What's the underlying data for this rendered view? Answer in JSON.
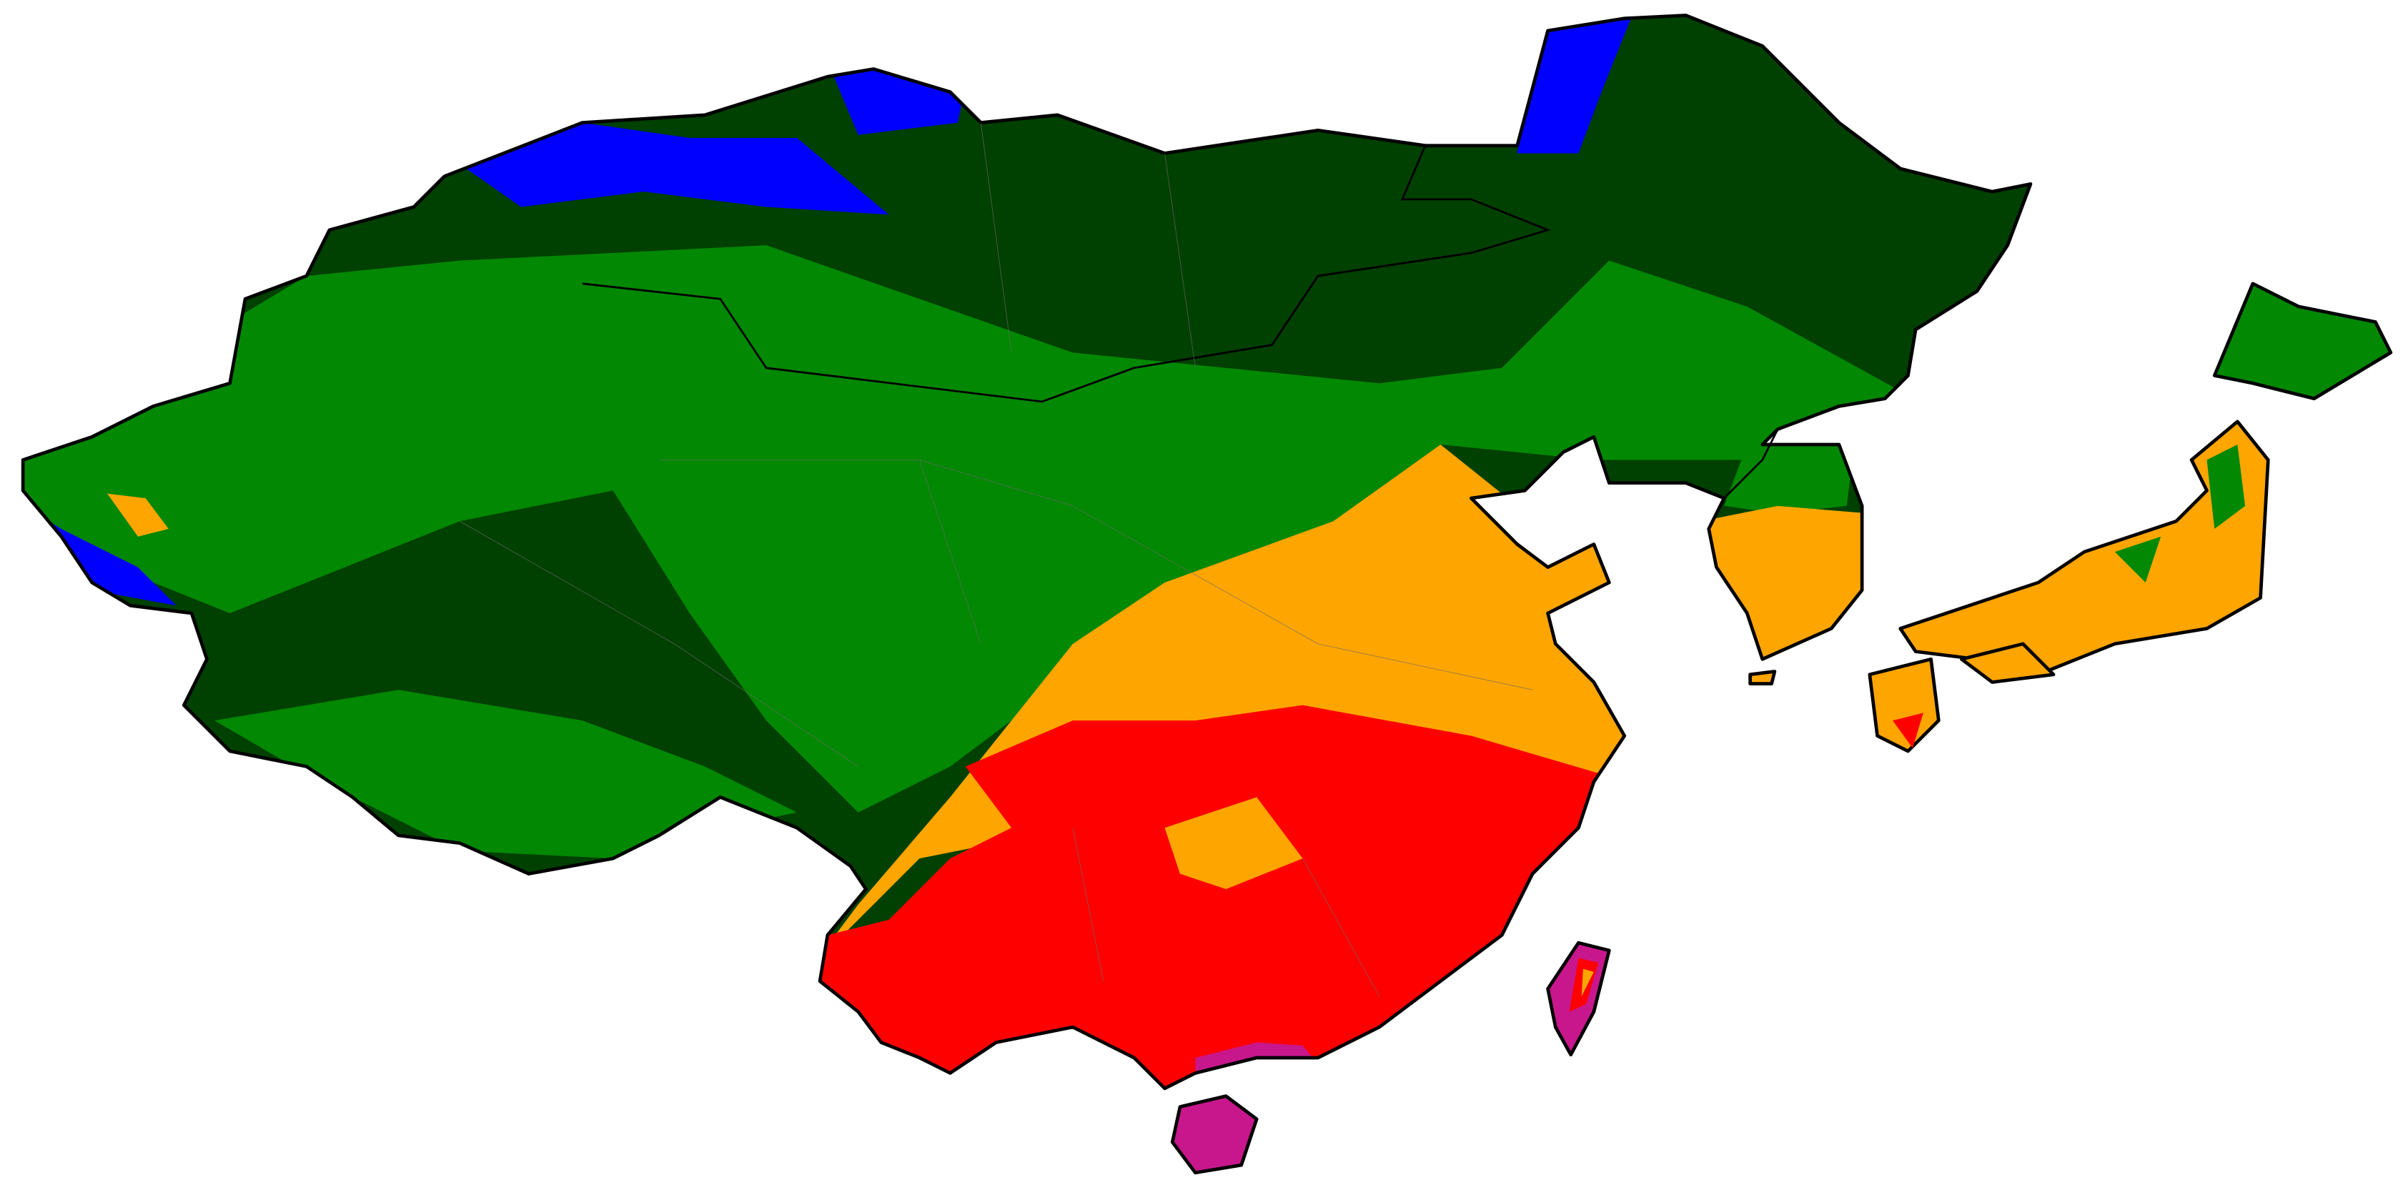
{
  "map": {
    "colors": {
      "background": "#ffffff",
      "dark_green": "#004000",
      "green": "#028802",
      "blue": "#0000ff",
      "orange": "#ffa500",
      "red": "#ff0000",
      "magenta": "#c8178c",
      "coastline": "#000000",
      "province_lines": "#6a6a6a"
    }
  }
}
